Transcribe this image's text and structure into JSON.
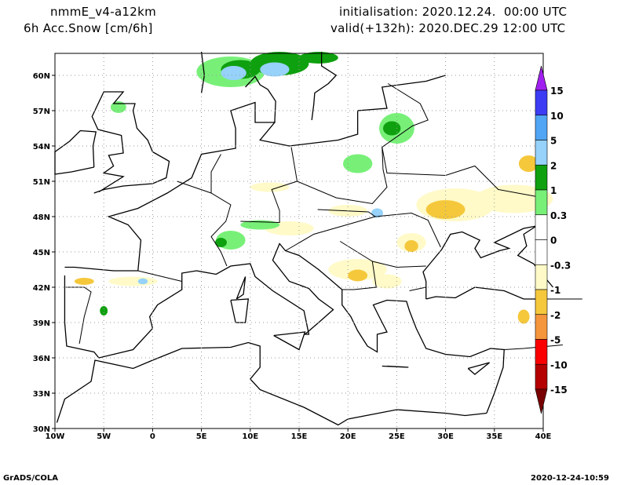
{
  "header": {
    "model": "nmmE_v4-a12km",
    "field": "6h Acc.Snow [cm/6h]",
    "init": "initialisation: 2020.12.24.  00:00 UTC",
    "valid": "valid(+132h): 2020.DEC.29 12:00 UTC"
  },
  "axes": {
    "lat_labels": [
      "60N",
      "57N",
      "54N",
      "51N",
      "48N",
      "45N",
      "42N",
      "39N",
      "36N",
      "33N",
      "30N"
    ],
    "lat_values": [
      60,
      57,
      54,
      51,
      48,
      45,
      42,
      39,
      36,
      33,
      30
    ],
    "lon_labels": [
      "10W",
      "5W",
      "0",
      "5E",
      "10E",
      "15E",
      "20E",
      "25E",
      "30E",
      "35E",
      "40E"
    ],
    "lon_values": [
      -10,
      -5,
      0,
      5,
      10,
      15,
      20,
      25,
      30,
      35,
      40
    ]
  },
  "colorbar": {
    "labels": [
      "15",
      "10",
      "5",
      "2",
      "1",
      "0.3",
      "0",
      "-0.3",
      "-1",
      "-2",
      "-5",
      "-10",
      "-15"
    ],
    "colors": [
      "#a020f0",
      "#3c3cf5",
      "#50a5f5",
      "#96d2fa",
      "#0fa00f",
      "#78f078",
      "#ffffff",
      "#ffffff",
      "#fffac8",
      "#f5c83c",
      "#f5963c",
      "#fa0000",
      "#b40000",
      "#780000"
    ]
  },
  "footer": {
    "left": "GrADS/COLA",
    "right": "2020-12-24-10:59"
  }
}
